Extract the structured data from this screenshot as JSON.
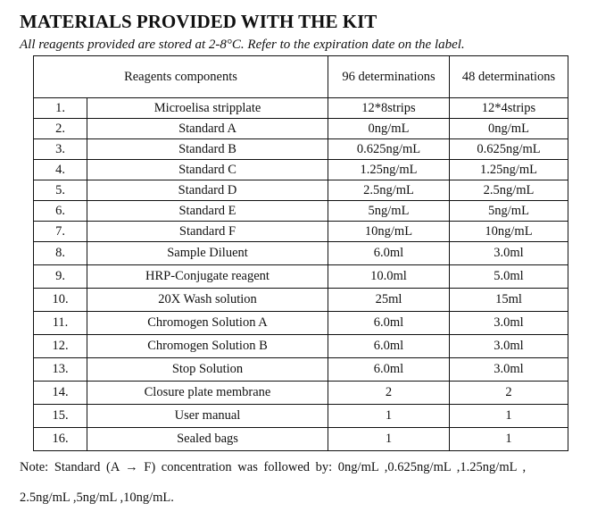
{
  "title": "MATERIALS PROVIDED WITH THE KIT",
  "subtitle": "All reagents provided are stored at 2-8°C. Refer to the expiration date on the label.",
  "table": {
    "headers": [
      "Reagents components",
      "96 determinations",
      "48 determinations"
    ],
    "rows": [
      [
        "1.",
        "Microelisa stripplate",
        "12*8strips",
        "12*4strips"
      ],
      [
        "2.",
        "Standard A",
        "0ng/mL",
        "0ng/mL"
      ],
      [
        "3.",
        "Standard B",
        "0.625ng/mL",
        "0.625ng/mL"
      ],
      [
        "4.",
        "Standard C",
        "1.25ng/mL",
        "1.25ng/mL"
      ],
      [
        "5.",
        "Standard D",
        "2.5ng/mL",
        "2.5ng/mL"
      ],
      [
        "6.",
        "Standard E",
        "5ng/mL",
        "5ng/mL"
      ],
      [
        "7.",
        "Standard F",
        "10ng/mL",
        "10ng/mL"
      ],
      [
        "8.",
        "Sample Diluent",
        "6.0ml",
        "3.0ml"
      ],
      [
        "9.",
        "HRP-Conjugate reagent",
        "10.0ml",
        "5.0ml"
      ],
      [
        "10.",
        "20X Wash solution",
        "25ml",
        "15ml"
      ],
      [
        "11.",
        "Chromogen Solution A",
        "6.0ml",
        "3.0ml"
      ],
      [
        "12.",
        "Chromogen Solution B",
        "6.0ml",
        "3.0ml"
      ],
      [
        "13.",
        "Stop Solution",
        "6.0ml",
        "3.0ml"
      ],
      [
        "14.",
        "Closure plate membrane",
        "2",
        "2"
      ],
      [
        "15.",
        "User manual",
        "1",
        "1"
      ],
      [
        "16.",
        "Sealed bags",
        "1",
        "1"
      ]
    ]
  },
  "note": {
    "line1": "Note: Standard (A → F) concentration was followed by: 0ng/mL ,0.625ng/mL ,1.25ng/mL ,",
    "line2": "2.5ng/mL ,5ng/mL ,10ng/mL."
  }
}
